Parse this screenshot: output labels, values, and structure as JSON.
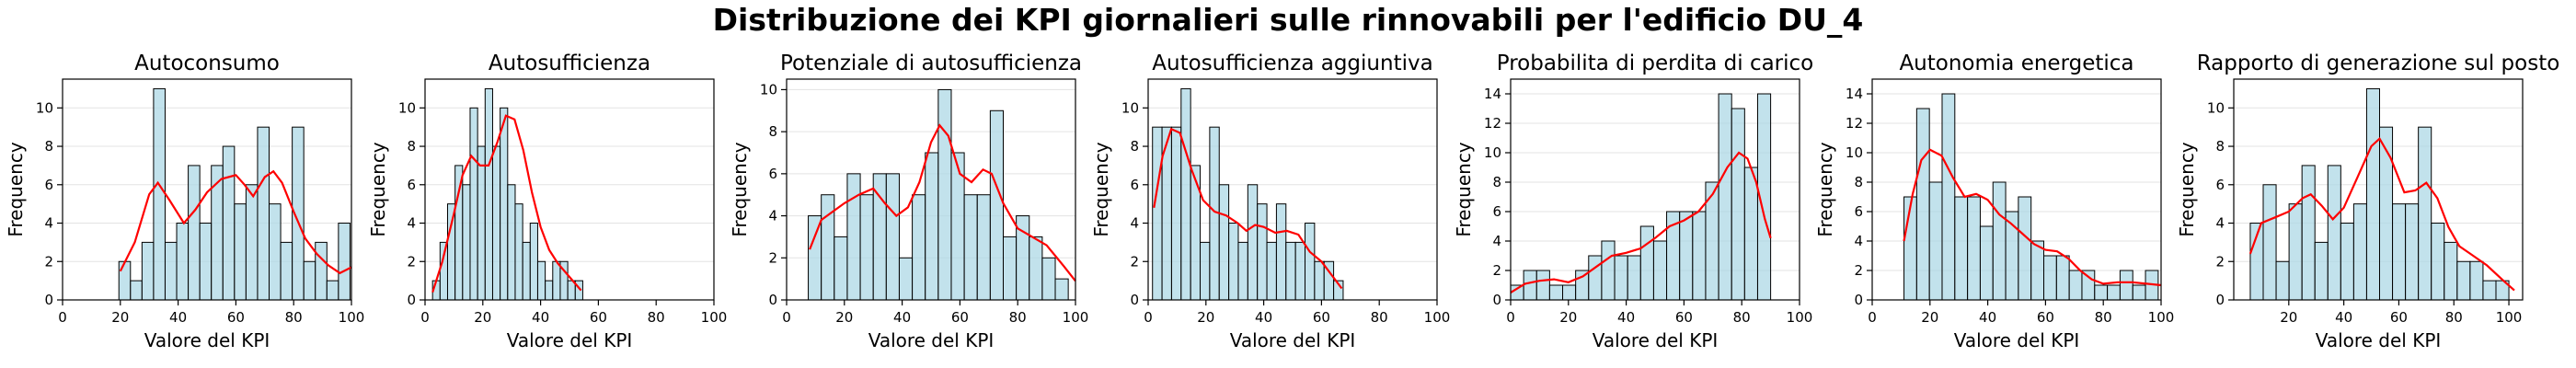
{
  "figure": {
    "suptitle": "Distribuzione dei KPI giornalieri sulle rinnovabili per l'edificio DU_4"
  },
  "chart_data": [
    {
      "type": "bar",
      "title": "Autoconsumo",
      "xlabel": "Valore del KPI",
      "ylabel": "Frequency",
      "xlim": [
        0,
        100
      ],
      "ylim": [
        0,
        11.5
      ],
      "xticks": [
        0,
        20,
        40,
        60,
        80,
        100
      ],
      "yticks": [
        0,
        2,
        4,
        6,
        8,
        10
      ],
      "grid": "y",
      "bin_start": 19.5,
      "bin_width": 4.0,
      "values": [
        2,
        1,
        3,
        11,
        3,
        4,
        7,
        4,
        7,
        8,
        5,
        6,
        9,
        5,
        3,
        9,
        2,
        3,
        1,
        4
      ],
      "kde": [
        [
          20,
          1.5
        ],
        [
          25,
          3
        ],
        [
          30,
          5.5
        ],
        [
          33,
          6.1
        ],
        [
          37,
          5.2
        ],
        [
          42,
          4.0
        ],
        [
          46,
          4.7
        ],
        [
          50,
          5.6
        ],
        [
          55,
          6.3
        ],
        [
          60,
          6.5
        ],
        [
          63,
          6.0
        ],
        [
          66,
          5.4
        ],
        [
          70,
          6.4
        ],
        [
          73,
          6.7
        ],
        [
          76,
          6.1
        ],
        [
          80,
          4.6
        ],
        [
          84,
          3.2
        ],
        [
          88,
          2.4
        ],
        [
          92,
          1.8
        ],
        [
          96,
          1.4
        ],
        [
          100,
          1.7
        ]
      ]
    },
    {
      "type": "bar",
      "title": "Autosufficienza",
      "xlabel": "Valore del KPI",
      "ylabel": "Frequency",
      "xlim": [
        0,
        100
      ],
      "ylim": [
        0,
        11.5
      ],
      "xticks": [
        0,
        20,
        40,
        60,
        80,
        100
      ],
      "yticks": [
        0,
        2,
        4,
        6,
        8,
        10
      ],
      "grid": "y",
      "bin_start": 2.6,
      "bin_width": 2.6,
      "values": [
        1,
        3,
        5,
        7,
        6,
        10,
        8,
        11,
        8,
        10,
        6,
        5,
        3,
        4,
        2,
        1,
        2,
        2,
        1,
        1
      ],
      "kde": [
        [
          2.6,
          0.4
        ],
        [
          6,
          2.0
        ],
        [
          10,
          4.5
        ],
        [
          13,
          6.5
        ],
        [
          16,
          7.5
        ],
        [
          19,
          7.0
        ],
        [
          22,
          7.0
        ],
        [
          25,
          8.2
        ],
        [
          28,
          9.6
        ],
        [
          31,
          9.4
        ],
        [
          34,
          7.8
        ],
        [
          37,
          5.6
        ],
        [
          40,
          3.8
        ],
        [
          43,
          2.6
        ],
        [
          46,
          1.9
        ],
        [
          50,
          1.2
        ],
        [
          54,
          0.5
        ]
      ]
    },
    {
      "type": "bar",
      "title": "Potenziale di autosufficienza",
      "xlabel": "Valore del KPI",
      "ylabel": "Frequency",
      "xlim": [
        0,
        100
      ],
      "ylim": [
        0,
        10.5
      ],
      "xticks": [
        0,
        20,
        40,
        60,
        80,
        100
      ],
      "yticks": [
        0,
        2,
        4,
        6,
        8,
        10
      ],
      "grid": "y",
      "bin_start": 7.5,
      "bin_width": 4.5,
      "values": [
        4,
        5,
        3,
        6,
        5,
        6,
        6,
        2,
        5,
        7,
        10,
        7,
        5,
        5,
        9,
        3,
        4,
        3,
        2,
        1
      ],
      "kde": [
        [
          8,
          2.4
        ],
        [
          12,
          3.8
        ],
        [
          16,
          4.2
        ],
        [
          20,
          4.6
        ],
        [
          25,
          5.0
        ],
        [
          30,
          5.3
        ],
        [
          34,
          4.6
        ],
        [
          38,
          4.0
        ],
        [
          42,
          4.4
        ],
        [
          46,
          5.6
        ],
        [
          50,
          7.5
        ],
        [
          53,
          8.3
        ],
        [
          56,
          7.8
        ],
        [
          60,
          6.0
        ],
        [
          64,
          5.6
        ],
        [
          68,
          6.2
        ],
        [
          71,
          6.0
        ],
        [
          75,
          4.6
        ],
        [
          80,
          3.4
        ],
        [
          85,
          3.0
        ],
        [
          90,
          2.6
        ],
        [
          96,
          1.6
        ],
        [
          100,
          0.9
        ]
      ]
    },
    {
      "type": "bar",
      "title": "Autosufficienza aggiuntiva",
      "xlabel": "Valore del KPI",
      "ylabel": "Frequency",
      "xlim": [
        0,
        100
      ],
      "ylim": [
        0,
        11.5
      ],
      "xticks": [
        0,
        20,
        40,
        60,
        80,
        100
      ],
      "yticks": [
        0,
        2,
        4,
        6,
        8,
        10
      ],
      "grid": "y",
      "bin_start": 1.5,
      "bin_width": 3.3,
      "values": [
        9,
        9,
        9,
        11,
        7,
        3,
        9,
        6,
        4,
        3,
        6,
        5,
        3,
        5,
        3,
        3,
        4,
        2,
        2,
        1
      ],
      "kde": [
        [
          2,
          4.8
        ],
        [
          5,
          7.5
        ],
        [
          8,
          8.9
        ],
        [
          11,
          8.7
        ],
        [
          15,
          6.8
        ],
        [
          19,
          5.2
        ],
        [
          23,
          4.6
        ],
        [
          27,
          4.4
        ],
        [
          31,
          4.0
        ],
        [
          34,
          3.6
        ],
        [
          37,
          3.9
        ],
        [
          40,
          3.8
        ],
        [
          44,
          3.5
        ],
        [
          48,
          3.6
        ],
        [
          52,
          3.4
        ],
        [
          56,
          2.5
        ],
        [
          60,
          2.0
        ],
        [
          64,
          1.2
        ],
        [
          67,
          0.6
        ]
      ]
    },
    {
      "type": "bar",
      "title": "Probabilita di perdita di carico",
      "xlabel": "Valore del KPI",
      "ylabel": "Frequency",
      "xlim": [
        0,
        100
      ],
      "ylim": [
        0,
        15
      ],
      "xticks": [
        0,
        20,
        40,
        60,
        80,
        100
      ],
      "yticks": [
        0,
        2,
        4,
        6,
        8,
        10,
        12,
        14
      ],
      "grid": "y",
      "bin_start": 0.0,
      "bin_width": 4.5,
      "values": [
        1,
        2,
        2,
        1,
        1,
        2,
        3,
        4,
        3,
        3,
        5,
        4,
        6,
        6,
        6,
        8,
        14,
        13,
        9,
        14
      ],
      "kde": [
        [
          0,
          0.5
        ],
        [
          5,
          1.1
        ],
        [
          10,
          1.3
        ],
        [
          15,
          1.4
        ],
        [
          20,
          1.2
        ],
        [
          25,
          1.6
        ],
        [
          30,
          2.3
        ],
        [
          35,
          3.0
        ],
        [
          40,
          3.2
        ],
        [
          45,
          3.5
        ],
        [
          50,
          4.2
        ],
        [
          55,
          5.0
        ],
        [
          60,
          5.4
        ],
        [
          65,
          6.0
        ],
        [
          70,
          7.2
        ],
        [
          75,
          9.0
        ],
        [
          79,
          10.0
        ],
        [
          82,
          9.6
        ],
        [
          85,
          8.0
        ],
        [
          88,
          5.5
        ],
        [
          90,
          4.2
        ]
      ]
    },
    {
      "type": "bar",
      "title": "Autonomia energetica",
      "xlabel": "Valore del KPI",
      "ylabel": "Frequency",
      "xlim": [
        0,
        100
      ],
      "ylim": [
        0,
        15
      ],
      "xticks": [
        0,
        20,
        40,
        60,
        80,
        100
      ],
      "yticks": [
        0,
        2,
        4,
        6,
        8,
        10,
        12,
        14
      ],
      "grid": "y",
      "bin_start": 11.0,
      "bin_width": 4.4,
      "values": [
        7,
        13,
        8,
        14,
        7,
        7,
        5,
        8,
        6,
        7,
        4,
        3,
        3,
        2,
        2,
        1,
        1,
        2,
        1,
        2
      ],
      "kde": [
        [
          11,
          4.0
        ],
        [
          14,
          7.2
        ],
        [
          17,
          9.5
        ],
        [
          20,
          10.2
        ],
        [
          24,
          9.8
        ],
        [
          28,
          8.3
        ],
        [
          32,
          7.0
        ],
        [
          36,
          7.2
        ],
        [
          40,
          6.8
        ],
        [
          44,
          5.8
        ],
        [
          48,
          5.2
        ],
        [
          52,
          4.5
        ],
        [
          56,
          3.8
        ],
        [
          60,
          3.4
        ],
        [
          64,
          3.3
        ],
        [
          68,
          2.8
        ],
        [
          72,
          2.0
        ],
        [
          76,
          1.4
        ],
        [
          80,
          1.1
        ],
        [
          85,
          1.2
        ],
        [
          90,
          1.2
        ],
        [
          95,
          1.1
        ],
        [
          100,
          1.0
        ]
      ]
    },
    {
      "type": "bar",
      "title": "Rapporto di generazione sul posto",
      "xlabel": "Valore del KPI",
      "ylabel": "Frequency",
      "xlim": [
        0,
        105
      ],
      "ylim": [
        0,
        11.5
      ],
      "xticks": [
        20,
        40,
        60,
        80,
        100
      ],
      "yticks": [
        0,
        2,
        4,
        6,
        8,
        10
      ],
      "grid": "y",
      "bin_start": 6.0,
      "bin_width": 4.7,
      "values": [
        4,
        6,
        2,
        5,
        7,
        3,
        7,
        4,
        5,
        11,
        9,
        5,
        5,
        9,
        4,
        3,
        2,
        2,
        1,
        1
      ],
      "kde": [
        [
          6,
          2.4
        ],
        [
          10,
          4.0
        ],
        [
          15,
          4.3
        ],
        [
          20,
          4.6
        ],
        [
          25,
          5.3
        ],
        [
          28,
          5.5
        ],
        [
          32,
          4.9
        ],
        [
          36,
          4.2
        ],
        [
          40,
          4.8
        ],
        [
          45,
          6.4
        ],
        [
          50,
          8.0
        ],
        [
          53,
          8.4
        ],
        [
          57,
          7.4
        ],
        [
          62,
          5.6
        ],
        [
          66,
          5.7
        ],
        [
          70,
          6.1
        ],
        [
          74,
          5.3
        ],
        [
          78,
          3.8
        ],
        [
          82,
          2.8
        ],
        [
          86,
          2.4
        ],
        [
          92,
          1.8
        ],
        [
          98,
          1.0
        ],
        [
          102,
          0.5
        ]
      ]
    }
  ]
}
